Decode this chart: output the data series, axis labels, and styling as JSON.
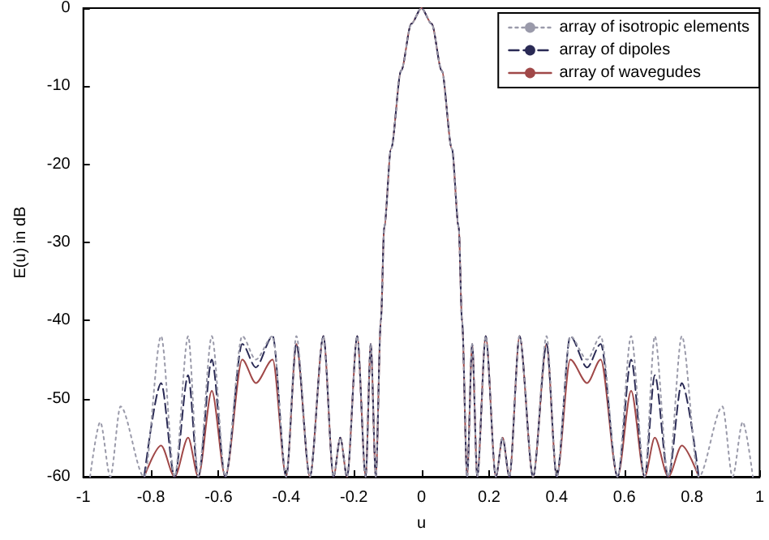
{
  "chart_data": {
    "type": "line",
    "xlabel": "u",
    "ylabel": "E(u) in dB",
    "xlim": [
      -1,
      1
    ],
    "xticks": [
      -1,
      -0.8,
      -0.6,
      -0.4,
      -0.2,
      0,
      0.2,
      0.4,
      0.6,
      0.8,
      1
    ],
    "ylim": [
      -60,
      0
    ],
    "yticks": [
      -60,
      -50,
      -40,
      -30,
      -20,
      -10,
      0
    ],
    "grid": false,
    "legend": "top right",
    "marker": "none",
    "series": [
      {
        "name": "array of isotropic elements",
        "color": "#9a9aaa",
        "line_style": "dotted",
        "x": [
          -0.98,
          -0.95,
          -0.92,
          -0.89,
          -0.82,
          -0.77,
          -0.73,
          -0.69,
          -0.66,
          -0.62,
          -0.58,
          -0.53,
          -0.49,
          -0.44,
          -0.4,
          -0.37,
          -0.33,
          -0.29,
          -0.26,
          -0.24,
          -0.22,
          -0.19,
          -0.165,
          -0.15,
          -0.135,
          -0.12,
          -0.11,
          -0.09,
          -0.06,
          -0.03,
          0,
          0.03,
          0.06,
          0.09,
          0.11,
          0.12,
          0.135,
          0.15,
          0.165,
          0.19,
          0.22,
          0.24,
          0.26,
          0.29,
          0.33,
          0.37,
          0.4,
          0.44,
          0.49,
          0.53,
          0.58,
          0.62,
          0.66,
          0.69,
          0.73,
          0.77,
          0.82,
          0.89,
          0.92,
          0.95,
          0.98
        ],
        "values": [
          -60,
          -53,
          -60,
          -51,
          -60,
          -42,
          -60,
          -42,
          -60,
          -42,
          -60,
          -42,
          -45,
          -42,
          -60,
          -42,
          -60,
          -42,
          -60,
          -55,
          -60,
          -42,
          -60,
          -43,
          -60,
          -40,
          -28,
          -18,
          -8,
          -2,
          0,
          -2,
          -8,
          -18,
          -28,
          -40,
          -60,
          -43,
          -60,
          -42,
          -60,
          -55,
          -60,
          -42,
          -60,
          -42,
          -60,
          -42,
          -45,
          -42,
          -60,
          -42,
          -60,
          -42,
          -60,
          -42,
          -60,
          -51,
          -60,
          -53,
          -60
        ]
      },
      {
        "name": "array of dipoles",
        "color": "#2a2a55",
        "line_style": "dashed",
        "x": [
          -0.82,
          -0.77,
          -0.73,
          -0.69,
          -0.66,
          -0.62,
          -0.58,
          -0.53,
          -0.49,
          -0.44,
          -0.4,
          -0.37,
          -0.33,
          -0.29,
          -0.26,
          -0.24,
          -0.22,
          -0.19,
          -0.165,
          -0.15,
          -0.135,
          -0.12,
          -0.11,
          -0.09,
          -0.06,
          -0.03,
          0,
          0.03,
          0.06,
          0.09,
          0.11,
          0.12,
          0.135,
          0.15,
          0.165,
          0.19,
          0.22,
          0.24,
          0.26,
          0.29,
          0.33,
          0.37,
          0.4,
          0.44,
          0.49,
          0.53,
          0.58,
          0.62,
          0.66,
          0.69,
          0.73,
          0.77,
          0.82
        ],
        "values": [
          -60,
          -48,
          -60,
          -47,
          -60,
          -45,
          -60,
          -43,
          -46,
          -42,
          -60,
          -43,
          -60,
          -42,
          -60,
          -55,
          -60,
          -42,
          -60,
          -43,
          -60,
          -40,
          -28,
          -18,
          -8,
          -2,
          0,
          -2,
          -8,
          -18,
          -28,
          -40,
          -60,
          -43,
          -60,
          -42,
          -60,
          -55,
          -60,
          -42,
          -60,
          -43,
          -60,
          -42,
          -46,
          -43,
          -60,
          -45,
          -60,
          -47,
          -60,
          -48,
          -60
        ]
      },
      {
        "name": "array of wavegudes",
        "color": "#a04848",
        "line_style": "solid",
        "x": [
          -0.82,
          -0.77,
          -0.73,
          -0.69,
          -0.66,
          -0.62,
          -0.58,
          -0.53,
          -0.49,
          -0.44,
          -0.4,
          -0.37,
          -0.33,
          -0.29,
          -0.26,
          -0.24,
          -0.22,
          -0.19,
          -0.165,
          -0.15,
          -0.135,
          -0.12,
          -0.11,
          -0.09,
          -0.06,
          -0.03,
          0,
          0.03,
          0.06,
          0.09,
          0.11,
          0.12,
          0.135,
          0.15,
          0.165,
          0.19,
          0.22,
          0.24,
          0.26,
          0.29,
          0.33,
          0.37,
          0.4,
          0.44,
          0.49,
          0.53,
          0.58,
          0.62,
          0.66,
          0.69,
          0.73,
          0.77,
          0.82
        ],
        "values": [
          -60,
          -56,
          -60,
          -55,
          -60,
          -49,
          -60,
          -45,
          -48,
          -45,
          -60,
          -43,
          -60,
          -42,
          -60,
          -55,
          -60,
          -42,
          -60,
          -43,
          -60,
          -40,
          -28,
          -18,
          -8,
          -2,
          0,
          -2,
          -8,
          -18,
          -28,
          -40,
          -60,
          -43,
          -60,
          -42,
          -60,
          -55,
          -60,
          -42,
          -60,
          -43,
          -60,
          -45,
          -48,
          -45,
          -60,
          -49,
          -60,
          -55,
          -60,
          -56,
          -60
        ]
      }
    ]
  }
}
